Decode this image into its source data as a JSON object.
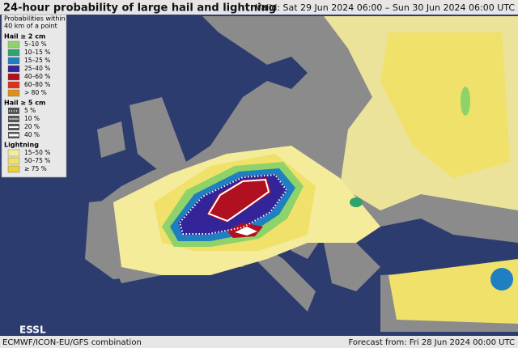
{
  "header": {
    "title": "24-hour probability of large hail and lightning",
    "valid": "Valid: Sat 29 Jun 2024 06:00 – Sun 30 Jun 2024 06:00 UTC"
  },
  "legend": {
    "intro": [
      "Probabilities within",
      "40 km of a point"
    ],
    "groups": [
      {
        "title": "Hail ≥ 2 cm",
        "items": [
          {
            "label": "5–10 %",
            "color": "#8ed36a"
          },
          {
            "label": "10–15 %",
            "color": "#2fa36b"
          },
          {
            "label": "15–25 %",
            "color": "#1f7fc0"
          },
          {
            "label": "25–40 %",
            "color": "#33249a"
          },
          {
            "label": "40–60 %",
            "color": "#b01020"
          },
          {
            "label": "60–80 %",
            "color": "#e0301d"
          },
          {
            "label": "> 80 %",
            "color": "#e0901a"
          }
        ]
      },
      {
        "title": "Hail ≥ 5 cm",
        "items": [
          {
            "label": "5 %"
          },
          {
            "label": "10 %"
          },
          {
            "label": "20 %"
          },
          {
            "label": "40 %"
          }
        ]
      },
      {
        "title": "Lightning",
        "items": [
          {
            "label": "15–50 %",
            "color": "#f4ec9a"
          },
          {
            "label": "50–75 %",
            "color": "#efe16a"
          },
          {
            "label": "≥ 75 %",
            "color": "#e6d23a"
          }
        ]
      }
    ]
  },
  "logo": "ESSL",
  "footer": {
    "model": "ECMWF/ICON-EU/GFS combination",
    "forecast": "Forecast from: Fri 28 Jun 2024 00:00 UTC"
  }
}
